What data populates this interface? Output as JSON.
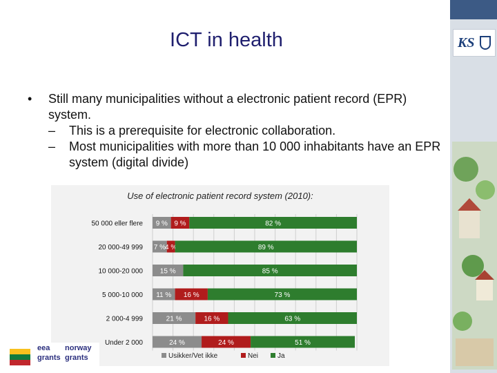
{
  "slide": {
    "title": "ICT in health",
    "bullet1": "Still many municipalities without a electronic patient record (EPR) system.",
    "sub1": "This is a prerequisite for electronic collaboration.",
    "sub2": "Most municipalities with more than 10 000 inhabitants have an EPR system (digital divide)"
  },
  "logos": {
    "ks": "KS",
    "eea": "eea",
    "norway": "norway",
    "grants1": "grants",
    "grants2": "grants"
  },
  "chart_data": {
    "type": "bar",
    "orientation": "horizontal",
    "stacked": true,
    "title": "Use of electronic patient record system (2010):",
    "categories": [
      "50 000 eller flere",
      "20 000-49 999",
      "10 000-20 000",
      "5 000-10 000",
      "2 000-4 999",
      "Under 2 000"
    ],
    "series": [
      {
        "name": "Usikker/Vet ikke",
        "color": "#8c8c8c",
        "values": [
          9,
          7,
          15,
          11,
          21,
          24
        ],
        "labels": [
          "9 %",
          "7 %",
          "15 %",
          "11 %",
          "21 %",
          "24 %"
        ]
      },
      {
        "name": "Nei",
        "color": "#b01c1c",
        "values": [
          9,
          4,
          0,
          16,
          16,
          24
        ],
        "labels": [
          "9 %",
          "4 %",
          "",
          "16 %",
          "16 %",
          "24 %"
        ]
      },
      {
        "name": "Ja",
        "color": "#2e7d2e",
        "values": [
          82,
          89,
          85,
          73,
          63,
          51
        ],
        "labels": [
          "82 %",
          "89 %",
          "85 %",
          "73 %",
          "63 %",
          "51 %"
        ]
      }
    ],
    "xlim": [
      0,
      100
    ],
    "grid": true,
    "legend": "bottom"
  }
}
